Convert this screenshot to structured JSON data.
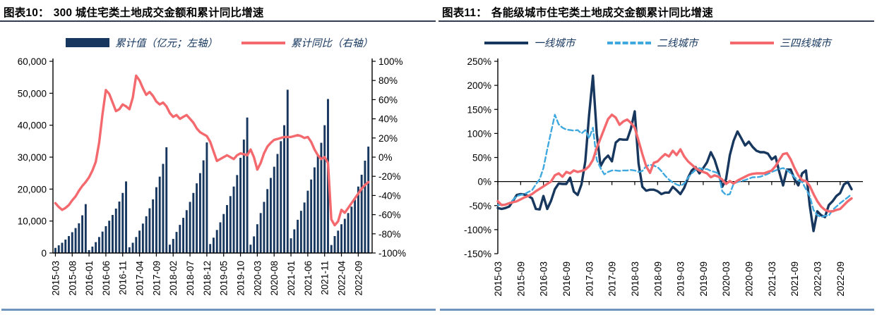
{
  "panels": [
    {
      "fig_label": "图表10：",
      "title": "300 城住宅类土地成交金额和累计同比增速"
    },
    {
      "fig_label": "图表11：",
      "title": "各能级城市住宅类土地成交金额累计同比增速"
    }
  ],
  "colors": {
    "navy": "#17375E",
    "salmon": "#F4696E",
    "lightblue": "#3FA9DF",
    "title_rule": "#333F50",
    "bottom_rule": "#6F94BD",
    "axis": "#000000"
  },
  "chart_data": [
    {
      "type": "bar",
      "subtype": "bar+line dual-axis combo",
      "title": "300 城住宅类土地成交金额和累计同比增速",
      "x_freq": "monthly",
      "x_start": "2015-03",
      "x_end": "2022-12",
      "x_tick_labels": [
        "2015-03",
        "2015-08",
        "2016-01",
        "2016-06",
        "2016-11",
        "2017-04",
        "2017-09",
        "2018-02",
        "2018-07",
        "2018-12",
        "2019-05",
        "2019-10",
        "2020-03",
        "2020-08",
        "2021-01",
        "2021-06",
        "2021-11",
        "2022-04",
        "2022-09"
      ],
      "left_axis": {
        "title": "累计值（亿元；左轴）",
        "min": 0,
        "max": 60000,
        "ticks": [
          "60,000",
          "50,000",
          "40,000",
          "30,000",
          "20,000",
          "10,000",
          "0"
        ]
      },
      "right_axis": {
        "title": "累计同比（右轴）",
        "min": -100,
        "max": 100,
        "ticks": [
          "100%",
          "80%",
          "60%",
          "40%",
          "20%",
          "0%",
          "-20%",
          "-40%",
          "-60%",
          "-80%",
          "-100%"
        ]
      },
      "series": [
        {
          "name": "累计值（亿元；左轴）",
          "type": "bar",
          "axis": "left",
          "color": "#17375E",
          "values": [
            1600,
            2400,
            3200,
            4200,
            5300,
            6500,
            7800,
            9300,
            11800,
            15300,
            900,
            2000,
            3400,
            5000,
            6700,
            8400,
            10100,
            11900,
            13900,
            16100,
            18800,
            22400,
            1800,
            3200,
            5000,
            7000,
            9200,
            11500,
            14000,
            16800,
            20600,
            23900,
            27900,
            33100,
            2600,
            4400,
            6600,
            8800,
            11000,
            13400,
            16000,
            18800,
            21800,
            25000,
            29000,
            34600,
            2800,
            4800,
            7200,
            9600,
            12200,
            15000,
            17800,
            20800,
            24400,
            29800,
            35500,
            42400,
            2600,
            5200,
            9000,
            12500,
            16000,
            20000,
            23500,
            27000,
            31000,
            35000,
            40000,
            51100,
            4600,
            7400,
            10400,
            13200,
            15800,
            19500,
            23000,
            26800,
            30500,
            34500,
            40000,
            48200,
            2500,
            5300,
            7000,
            9000,
            10700,
            12500,
            14500,
            16700,
            20800,
            24500,
            28900,
            33300
          ]
        },
        {
          "name": "累计同比（右轴）",
          "type": "line",
          "axis": "right",
          "color": "#F4696E",
          "values": [
            -48,
            -52,
            -55,
            -53,
            -50,
            -45,
            -41,
            -35,
            -30,
            -26,
            -21,
            -14,
            -5,
            15,
            45,
            70,
            66,
            57,
            48,
            50,
            55,
            53,
            50,
            62,
            85,
            80,
            72,
            65,
            68,
            64,
            58,
            55,
            57,
            53,
            46,
            42,
            44,
            40,
            42,
            44,
            40,
            36,
            30,
            26,
            24,
            22,
            16,
            6,
            -4,
            -2,
            0,
            2,
            0,
            -2,
            2,
            4,
            3,
            2,
            8,
            0,
            -13,
            -6,
            4,
            11,
            15,
            18,
            19,
            20,
            21,
            21,
            21,
            22,
            23,
            22,
            20,
            21,
            16,
            8,
            2,
            -2,
            0,
            -6,
            -65,
            -71,
            -67,
            -55,
            -58,
            -53,
            -48,
            -43,
            -38,
            -33,
            -29,
            -26
          ]
        }
      ]
    },
    {
      "type": "line",
      "title": "各能级城市住宅类土地成交金额累计同比增速",
      "x_freq": "monthly",
      "x_start": "2015-03",
      "x_end": "2022-12",
      "x_tick_labels": [
        "2015-03",
        "2015-09",
        "2016-03",
        "2016-09",
        "2017-03",
        "2017-09",
        "2018-03",
        "2018-09",
        "2019-03",
        "2019-09",
        "2020-03",
        "2020-09",
        "2021-03",
        "2021-09",
        "2022-03",
        "2022-09"
      ],
      "y_axis": {
        "unit": "%",
        "min": -150,
        "max": 250,
        "ticks": [
          "250%",
          "200%",
          "150%",
          "100%",
          "50%",
          "0%",
          "-50%",
          "-100%",
          "-150%"
        ]
      },
      "series": [
        {
          "name": "一线城市",
          "color": "#17375E",
          "dash": false,
          "values": [
            -55,
            -57,
            -55,
            -52,
            -40,
            -28,
            -26,
            -27,
            -30,
            -35,
            -57,
            -58,
            -30,
            -57,
            -40,
            -16,
            -4,
            -5,
            -5,
            8,
            -21,
            -28,
            -6,
            42,
            139,
            220,
            100,
            32,
            46,
            54,
            42,
            81,
            88,
            87,
            87,
            110,
            146,
            38,
            -11,
            -19,
            -17,
            -17,
            -20,
            -26,
            -23,
            -23,
            -11,
            -18,
            -26,
            -13,
            8,
            23,
            30,
            17,
            28,
            40,
            61,
            45,
            20,
            -11,
            5,
            55,
            85,
            104,
            90,
            75,
            83,
            72,
            64,
            61,
            61,
            58,
            46,
            52,
            20,
            -8,
            25,
            25,
            5,
            -8,
            17,
            23,
            -49,
            -103,
            -62,
            -70,
            -74,
            -49,
            -41,
            -30,
            -24,
            -6,
            -1,
            -16
          ]
        },
        {
          "name": "二线城市",
          "color": "#3FA9DF",
          "dash": true,
          "values": [
            -49,
            -48,
            -47,
            -45,
            -38,
            -30,
            -28,
            -26,
            -22,
            -18,
            -6,
            5,
            28,
            67,
            103,
            139,
            119,
            112,
            108,
            107,
            106,
            107,
            100,
            107,
            90,
            112,
            45,
            28,
            15,
            20,
            23,
            23,
            22,
            23,
            23,
            24,
            23,
            20,
            22,
            32,
            35,
            33,
            30,
            22,
            12,
            4,
            -2,
            -6,
            -9,
            -4,
            8,
            17,
            24,
            28,
            26,
            26,
            22,
            20,
            17,
            -20,
            -28,
            -26,
            -4,
            -1,
            1,
            3,
            6,
            9,
            9,
            10,
            13,
            16,
            20,
            23,
            26,
            28,
            24,
            17,
            9,
            2,
            -1,
            -16,
            -30,
            -59,
            -70,
            -74,
            -71,
            -71,
            -59,
            -52,
            -45,
            -39,
            -33,
            -26
          ]
        },
        {
          "name": "三四线城市",
          "color": "#F4696E",
          "dash": false,
          "values": [
            -41,
            -49,
            -48,
            -45,
            -43,
            -41,
            -37,
            -33,
            -30,
            -26,
            -20,
            -15,
            -10,
            -5,
            0,
            13,
            17,
            10,
            20,
            17,
            23,
            20,
            22,
            25,
            32,
            45,
            70,
            90,
            110,
            130,
            139,
            133,
            118,
            125,
            129,
            122,
            112,
            85,
            57,
            32,
            18,
            39,
            42,
            50,
            57,
            52,
            64,
            55,
            67,
            52,
            42,
            35,
            28,
            23,
            20,
            17,
            9,
            13,
            10,
            4,
            -5,
            1,
            -4,
            2,
            6,
            10,
            14,
            16,
            17,
            17,
            17,
            20,
            23,
            32,
            45,
            57,
            59,
            46,
            28,
            13,
            3,
            1,
            -9,
            -26,
            -41,
            -52,
            -59,
            -62,
            -62,
            -59,
            -57,
            -49,
            -41,
            -35
          ]
        }
      ]
    }
  ]
}
